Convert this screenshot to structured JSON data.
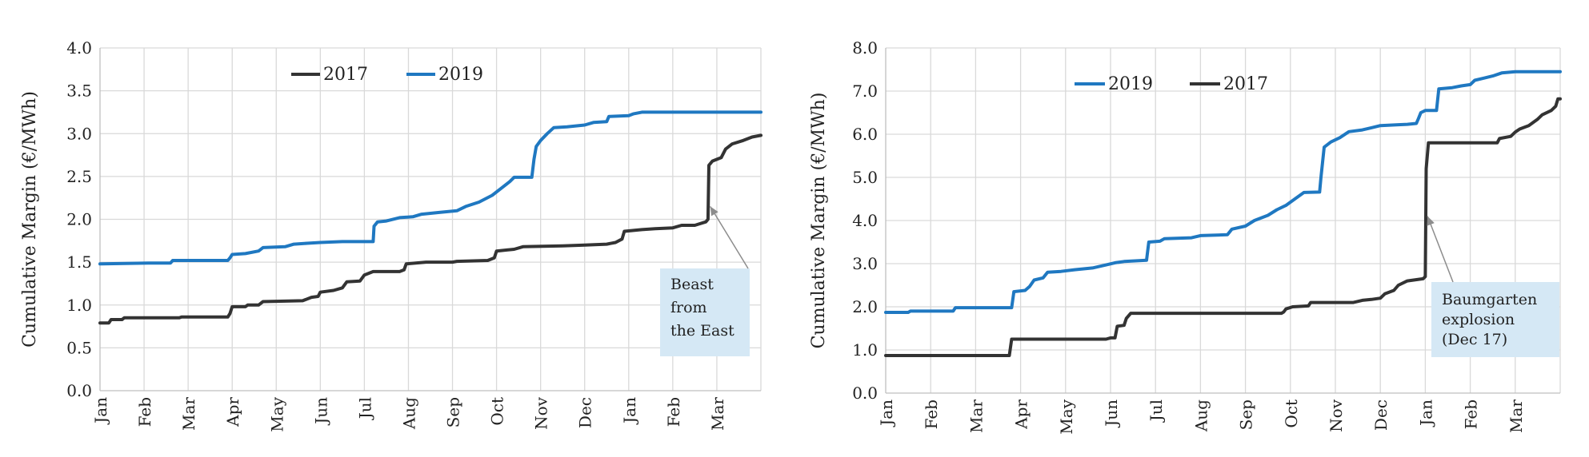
{
  "chart_data": [
    {
      "type": "line",
      "ylabel": "Cumulative Margin (€/MWh)",
      "ylim": [
        0,
        4.0
      ],
      "yticks": [
        "0.0",
        "0.5",
        "1.0",
        "1.5",
        "2.0",
        "2.5",
        "3.0",
        "3.5",
        "4.0"
      ],
      "categories": [
        "Jan",
        "Feb",
        "Mar",
        "Apr",
        "May",
        "Jun",
        "Jul",
        "Aug",
        "Sep",
        "Oct",
        "Nov",
        "Dec",
        "Jan",
        "Feb",
        "Mar"
      ],
      "legend": [
        "2017",
        "2019"
      ],
      "series": [
        {
          "name": "2017",
          "color": "#333333",
          "points": [
            [
              0,
              0.79
            ],
            [
              0.2,
              0.79
            ],
            [
              0.25,
              0.83
            ],
            [
              0.5,
              0.83
            ],
            [
              0.55,
              0.85
            ],
            [
              1.8,
              0.85
            ],
            [
              1.85,
              0.86
            ],
            [
              2.9,
              0.86
            ],
            [
              2.95,
              0.9
            ],
            [
              3.0,
              0.98
            ],
            [
              3.3,
              0.98
            ],
            [
              3.35,
              1.0
            ],
            [
              3.6,
              1.0
            ],
            [
              3.7,
              1.04
            ],
            [
              4.6,
              1.05
            ],
            [
              4.8,
              1.09
            ],
            [
              4.95,
              1.1
            ],
            [
              5.0,
              1.15
            ],
            [
              5.3,
              1.17
            ],
            [
              5.5,
              1.2
            ],
            [
              5.6,
              1.27
            ],
            [
              5.9,
              1.28
            ],
            [
              6.0,
              1.35
            ],
            [
              6.2,
              1.39
            ],
            [
              6.8,
              1.39
            ],
            [
              6.9,
              1.41
            ],
            [
              6.95,
              1.48
            ],
            [
              7.4,
              1.5
            ],
            [
              8.0,
              1.5
            ],
            [
              8.1,
              1.51
            ],
            [
              8.8,
              1.52
            ],
            [
              8.95,
              1.55
            ],
            [
              9.0,
              1.63
            ],
            [
              9.4,
              1.65
            ],
            [
              9.6,
              1.68
            ],
            [
              10.5,
              1.69
            ],
            [
              11.0,
              1.7
            ],
            [
              11.5,
              1.71
            ],
            [
              11.7,
              1.73
            ],
            [
              11.85,
              1.77
            ],
            [
              11.9,
              1.86
            ],
            [
              12.3,
              1.88
            ],
            [
              12.6,
              1.89
            ],
            [
              13.0,
              1.9
            ],
            [
              13.2,
              1.93
            ],
            [
              13.5,
              1.93
            ],
            [
              13.75,
              1.97
            ],
            [
              13.8,
              2.0
            ],
            [
              13.82,
              2.63
            ],
            [
              13.9,
              2.68
            ],
            [
              14.1,
              2.72
            ],
            [
              14.2,
              2.82
            ],
            [
              14.35,
              2.88
            ],
            [
              14.6,
              2.92
            ],
            [
              14.8,
              2.96
            ],
            [
              15.0,
              2.98
            ]
          ]
        },
        {
          "name": "2019",
          "color": "#1f78c1",
          "points": [
            [
              0,
              1.48
            ],
            [
              1.1,
              1.49
            ],
            [
              1.6,
              1.49
            ],
            [
              1.65,
              1.52
            ],
            [
              2.9,
              1.52
            ],
            [
              2.95,
              1.55
            ],
            [
              3.0,
              1.59
            ],
            [
              3.3,
              1.6
            ],
            [
              3.6,
              1.63
            ],
            [
              3.7,
              1.67
            ],
            [
              4.2,
              1.68
            ],
            [
              4.4,
              1.71
            ],
            [
              4.7,
              1.72
            ],
            [
              5.0,
              1.73
            ],
            [
              5.5,
              1.74
            ],
            [
              6.2,
              1.74
            ],
            [
              6.22,
              1.92
            ],
            [
              6.3,
              1.97
            ],
            [
              6.5,
              1.98
            ],
            [
              6.8,
              2.02
            ],
            [
              7.1,
              2.03
            ],
            [
              7.3,
              2.06
            ],
            [
              7.7,
              2.08
            ],
            [
              8.1,
              2.1
            ],
            [
              8.3,
              2.15
            ],
            [
              8.6,
              2.2
            ],
            [
              8.9,
              2.28
            ],
            [
              9.1,
              2.36
            ],
            [
              9.3,
              2.44
            ],
            [
              9.4,
              2.49
            ],
            [
              9.8,
              2.49
            ],
            [
              9.85,
              2.7
            ],
            [
              9.9,
              2.85
            ],
            [
              10.0,
              2.92
            ],
            [
              10.15,
              3.0
            ],
            [
              10.3,
              3.07
            ],
            [
              10.6,
              3.08
            ],
            [
              11.0,
              3.1
            ],
            [
              11.2,
              3.13
            ],
            [
              11.5,
              3.14
            ],
            [
              11.55,
              3.2
            ],
            [
              12.0,
              3.21
            ],
            [
              12.1,
              3.23
            ],
            [
              12.3,
              3.25
            ],
            [
              15.0,
              3.25
            ]
          ]
        }
      ],
      "annotation": {
        "lines": [
          "Beast",
          "from",
          "the East"
        ],
        "target": [
          13.85,
          2.15
        ]
      }
    },
    {
      "type": "line",
      "ylabel": "Cumulative Margin (€/MWh)",
      "ylim": [
        0,
        8.0
      ],
      "yticks": [
        "0.0",
        "1.0",
        "2.0",
        "3.0",
        "4.0",
        "5.0",
        "6.0",
        "7.0",
        "8.0"
      ],
      "categories": [
        "Jan",
        "Feb",
        "Mar",
        "Apr",
        "May",
        "Jun",
        "Jul",
        "Aug",
        "Sep",
        "Oct",
        "Nov",
        "Dec",
        "Jan",
        "Feb",
        "Mar"
      ],
      "legend": [
        "2019",
        "2017"
      ],
      "series": [
        {
          "name": "2019",
          "color": "#1f78c1",
          "points": [
            [
              0,
              1.87
            ],
            [
              0.5,
              1.87
            ],
            [
              0.55,
              1.9
            ],
            [
              1.5,
              1.9
            ],
            [
              1.55,
              1.98
            ],
            [
              2.8,
              1.98
            ],
            [
              2.85,
              2.35
            ],
            [
              3.1,
              2.38
            ],
            [
              3.2,
              2.47
            ],
            [
              3.3,
              2.62
            ],
            [
              3.5,
              2.67
            ],
            [
              3.6,
              2.8
            ],
            [
              3.9,
              2.82
            ],
            [
              4.2,
              2.86
            ],
            [
              4.6,
              2.9
            ],
            [
              4.9,
              2.97
            ],
            [
              5.1,
              3.02
            ],
            [
              5.3,
              3.05
            ],
            [
              5.8,
              3.08
            ],
            [
              5.85,
              3.5
            ],
            [
              6.1,
              3.52
            ],
            [
              6.2,
              3.58
            ],
            [
              6.8,
              3.6
            ],
            [
              7.0,
              3.65
            ],
            [
              7.6,
              3.67
            ],
            [
              7.7,
              3.8
            ],
            [
              8.0,
              3.87
            ],
            [
              8.2,
              4.0
            ],
            [
              8.5,
              4.12
            ],
            [
              8.7,
              4.25
            ],
            [
              8.9,
              4.35
            ],
            [
              9.1,
              4.5
            ],
            [
              9.3,
              4.65
            ],
            [
              9.65,
              4.66
            ],
            [
              9.68,
              5.0
            ],
            [
              9.75,
              5.7
            ],
            [
              9.9,
              5.82
            ],
            [
              10.1,
              5.92
            ],
            [
              10.3,
              6.06
            ],
            [
              10.6,
              6.1
            ],
            [
              10.8,
              6.15
            ],
            [
              11.0,
              6.2
            ],
            [
              11.4,
              6.22
            ],
            [
              11.6,
              6.23
            ],
            [
              11.8,
              6.25
            ],
            [
              11.85,
              6.37
            ],
            [
              11.9,
              6.5
            ],
            [
              12.0,
              6.55
            ],
            [
              12.25,
              6.55
            ],
            [
              12.3,
              7.05
            ],
            [
              12.6,
              7.08
            ],
            [
              12.8,
              7.12
            ],
            [
              13.0,
              7.15
            ],
            [
              13.1,
              7.25
            ],
            [
              13.3,
              7.3
            ],
            [
              13.5,
              7.35
            ],
            [
              13.7,
              7.42
            ],
            [
              14.0,
              7.45
            ],
            [
              15.0,
              7.45
            ]
          ]
        },
        {
          "name": "2017",
          "color": "#333333",
          "points": [
            [
              0,
              0.87
            ],
            [
              2.75,
              0.87
            ],
            [
              2.8,
              1.25
            ],
            [
              4.9,
              1.25
            ],
            [
              5.0,
              1.28
            ],
            [
              5.1,
              1.28
            ],
            [
              5.15,
              1.55
            ],
            [
              5.3,
              1.57
            ],
            [
              5.35,
              1.73
            ],
            [
              5.45,
              1.85
            ],
            [
              8.8,
              1.85
            ],
            [
              8.85,
              1.88
            ],
            [
              8.9,
              1.95
            ],
            [
              9.05,
              2.0
            ],
            [
              9.4,
              2.02
            ],
            [
              9.45,
              2.1
            ],
            [
              10.4,
              2.1
            ],
            [
              10.6,
              2.15
            ],
            [
              10.8,
              2.17
            ],
            [
              11.0,
              2.2
            ],
            [
              11.1,
              2.3
            ],
            [
              11.3,
              2.38
            ],
            [
              11.4,
              2.5
            ],
            [
              11.6,
              2.6
            ],
            [
              11.95,
              2.65
            ],
            [
              12.0,
              2.7
            ],
            [
              12.02,
              5.2
            ],
            [
              12.07,
              5.8
            ],
            [
              13.6,
              5.8
            ],
            [
              13.65,
              5.9
            ],
            [
              13.9,
              5.95
            ],
            [
              14.0,
              6.05
            ],
            [
              14.1,
              6.12
            ],
            [
              14.3,
              6.2
            ],
            [
              14.5,
              6.35
            ],
            [
              14.6,
              6.45
            ],
            [
              14.8,
              6.55
            ],
            [
              14.9,
              6.65
            ],
            [
              14.95,
              6.82
            ],
            [
              15.0,
              6.82
            ]
          ]
        }
      ],
      "annotation": {
        "lines": [
          "Baumgarten",
          "explosion",
          "(Dec 17)"
        ],
        "target": [
          12.05,
          4.1
        ]
      }
    }
  ]
}
